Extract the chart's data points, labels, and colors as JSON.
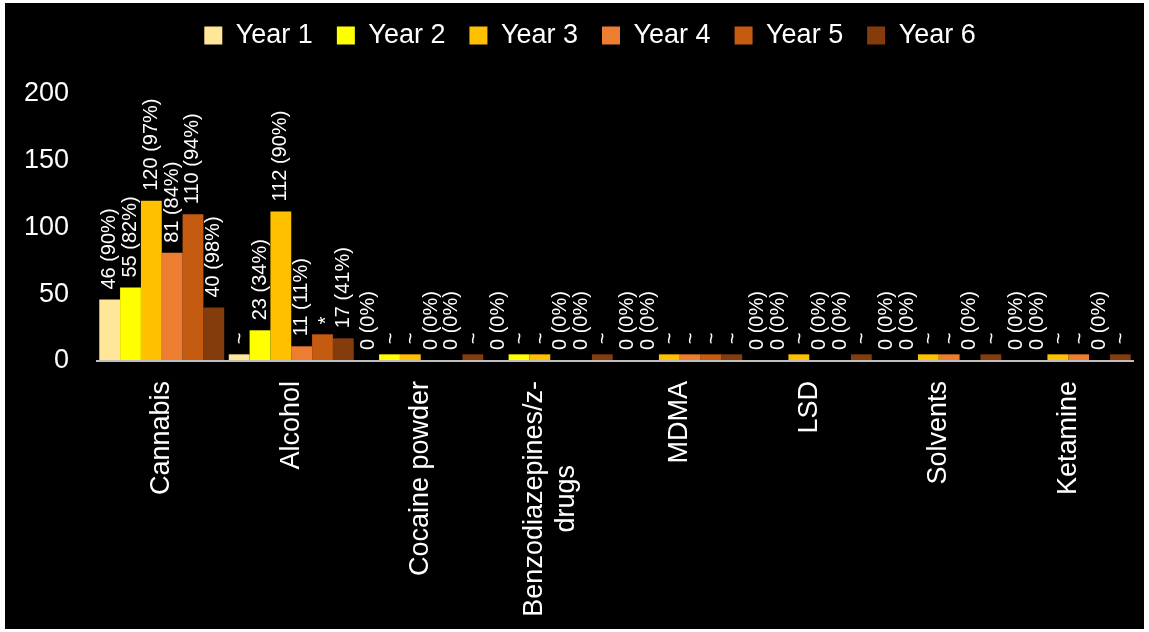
{
  "chart_data": {
    "type": "bar",
    "categories": [
      "Cannabis",
      "Alcohol",
      "Cocaine powder",
      "Benzodiazepines/z-drugs",
      "MDMA",
      "LSD",
      "Solvents",
      "Ketamine"
    ],
    "series": [
      {
        "name": "Year 1",
        "color": "#ffe699",
        "values": [
          46,
          5,
          0,
          0,
          0,
          0,
          0,
          0
        ],
        "value_labels": [
          "46 (90%)",
          "~",
          "0 (0%)",
          "0 (0%)",
          "0 (0%)",
          "0 (0%)",
          "0 (0%)",
          "0 (0%)"
        ]
      },
      {
        "name": "Year 2",
        "color": "#ffff00",
        "values": [
          55,
          23,
          5,
          5,
          0,
          0,
          0,
          0
        ],
        "value_labels": [
          "55 (82%)",
          "23 (34%)",
          "~",
          "~",
          "0 (0%)",
          "0 (0%)",
          "0 (0%)",
          "0 (0%)"
        ]
      },
      {
        "name": "Year 3",
        "color": "#ffc000",
        "values": [
          120,
          112,
          5,
          5,
          5,
          5,
          5,
          5
        ],
        "value_labels": [
          "120 (97%)",
          "112 (90%)",
          "~",
          "~",
          "~",
          "~",
          "~",
          "~"
        ]
      },
      {
        "name": "Year 4",
        "color": "#ed7d31",
        "values": [
          81,
          11,
          0,
          0,
          5,
          0,
          5,
          5
        ],
        "value_labels": [
          "81 (84%)",
          "11 (11%)",
          "0 (0%)",
          "0 (0%)",
          "~",
          "0 (0%)",
          "~",
          "~"
        ]
      },
      {
        "name": "Year 5",
        "color": "#c55a11",
        "values": [
          110,
          20,
          0,
          0,
          5,
          0,
          0,
          0
        ],
        "value_labels": [
          "110 (94%)",
          "*",
          "0 (0%)",
          "0 (0%)",
          "~",
          "0 (0%)",
          "0 (0%)",
          "0 (0%)"
        ]
      },
      {
        "name": "Year 6",
        "color": "#843c0c",
        "values": [
          40,
          17,
          5,
          5,
          5,
          5,
          5,
          5
        ],
        "value_labels": [
          "40 (98%)",
          "17 (41%)",
          "~",
          "~",
          "~",
          "~",
          "~",
          "~"
        ]
      }
    ],
    "ylim": [
      0,
      200
    ],
    "yticks": [
      0,
      50,
      100,
      150,
      200
    ],
    "legend": "top"
  }
}
